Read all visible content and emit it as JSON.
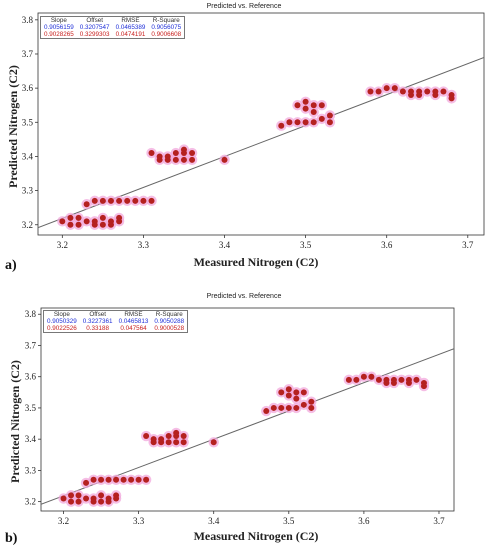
{
  "panels": [
    {
      "letter": "a)",
      "title": "Predicted vs. Reference",
      "stats": {
        "headers": [
          "Slope",
          "Offset",
          "RMSE",
          "R-Square"
        ],
        "rows": [
          [
            "0.9056159",
            "0.3207547",
            "0.0465389",
            "0.9056075"
          ],
          [
            "0.9028265",
            "0.3299303",
            "0.0474191",
            "0.9006608"
          ]
        ],
        "row_colors": [
          "#1f2fd8",
          "#c8201e"
        ]
      }
    },
    {
      "letter": "b)",
      "title": "Predicted vs. Reference",
      "stats": {
        "headers": [
          "Slope",
          "Offset",
          "RMSE",
          "R-Square"
        ],
        "rows": [
          [
            "0.9050329",
            "0.3227361",
            "0.0465813",
            "0.9050288"
          ],
          [
            "0.9022526",
            "0.33188",
            "0.047564",
            "0.9000528"
          ]
        ],
        "row_colors": [
          "#1f2fd8",
          "#c8201e"
        ]
      }
    }
  ],
  "chart_data": [
    {
      "type": "scatter",
      "title": "Predicted vs. Reference",
      "xlabel": "Measured Nitrogen (C2)",
      "ylabel": "Predicted Nitrogen (C2)",
      "xlim": [
        3.17,
        3.72
      ],
      "ylim": [
        3.17,
        3.82
      ],
      "xticks": [
        "3.2",
        "3.3",
        "3.4",
        "3.5",
        "3.6",
        "3.7"
      ],
      "yticks": [
        "3.2",
        "3.3",
        "3.4",
        "3.5",
        "3.6",
        "3.7",
        "3.8"
      ],
      "grid": false,
      "colors": {
        "points": "#b5211f",
        "halo": "#f2a8dc",
        "line": "#666666"
      },
      "series": [
        {
          "x": [
            3.2,
            3.21,
            3.22,
            3.23,
            3.21,
            3.22,
            3.24,
            3.25,
            3.26,
            3.27,
            3.24,
            3.25,
            3.26,
            3.27,
            3.23,
            3.24,
            3.25,
            3.26,
            3.27,
            3.28,
            3.29,
            3.3,
            3.31,
            3.31,
            3.32,
            3.33,
            3.34,
            3.35,
            3.36,
            3.32,
            3.33,
            3.34,
            3.35,
            3.36,
            3.35,
            3.4,
            3.47,
            3.48,
            3.49,
            3.5,
            3.51,
            3.52,
            3.49,
            3.5,
            3.51,
            3.52,
            3.5,
            3.51,
            3.53,
            3.53,
            3.58,
            3.59,
            3.6,
            3.61,
            3.62,
            3.63,
            3.64,
            3.65,
            3.66,
            3.67,
            3.68,
            3.63,
            3.66,
            3.68,
            3.64
          ],
          "y": [
            3.21,
            3.22,
            3.22,
            3.21,
            3.2,
            3.2,
            3.21,
            3.22,
            3.21,
            3.22,
            3.2,
            3.2,
            3.2,
            3.21,
            3.26,
            3.27,
            3.27,
            3.27,
            3.27,
            3.27,
            3.27,
            3.27,
            3.27,
            3.41,
            3.4,
            3.4,
            3.41,
            3.41,
            3.41,
            3.39,
            3.39,
            3.39,
            3.39,
            3.39,
            3.42,
            3.39,
            3.49,
            3.5,
            3.5,
            3.5,
            3.5,
            3.51,
            3.55,
            3.56,
            3.55,
            3.55,
            3.54,
            3.53,
            3.52,
            3.5,
            3.59,
            3.59,
            3.6,
            3.6,
            3.59,
            3.59,
            3.59,
            3.59,
            3.59,
            3.59,
            3.58,
            3.58,
            3.58,
            3.57,
            3.58
          ]
        }
      ],
      "regression_line": {
        "slope": 0.9056159,
        "offset": 0.3207547
      }
    },
    {
      "type": "scatter",
      "title": "Predicted vs. Reference",
      "xlabel": "Measured Nitrogen (C2)",
      "ylabel": "Predicted Nitrogen (C2)",
      "xlim": [
        3.17,
        3.72
      ],
      "ylim": [
        3.17,
        3.82
      ],
      "xticks": [
        "3.2",
        "3.3",
        "3.4",
        "3.5",
        "3.6",
        "3.7"
      ],
      "yticks": [
        "3.2",
        "3.3",
        "3.4",
        "3.5",
        "3.6",
        "3.7",
        "3.8"
      ],
      "grid": false,
      "colors": {
        "points": "#b5211f",
        "halo": "#f2a8dc",
        "line": "#666666"
      },
      "series": [
        {
          "x": [
            3.2,
            3.21,
            3.22,
            3.23,
            3.21,
            3.22,
            3.24,
            3.25,
            3.26,
            3.27,
            3.24,
            3.25,
            3.26,
            3.27,
            3.23,
            3.24,
            3.25,
            3.26,
            3.27,
            3.28,
            3.29,
            3.3,
            3.31,
            3.31,
            3.32,
            3.33,
            3.34,
            3.35,
            3.36,
            3.32,
            3.33,
            3.34,
            3.35,
            3.36,
            3.35,
            3.4,
            3.47,
            3.48,
            3.49,
            3.5,
            3.51,
            3.52,
            3.49,
            3.5,
            3.51,
            3.52,
            3.5,
            3.51,
            3.53,
            3.53,
            3.58,
            3.59,
            3.6,
            3.61,
            3.62,
            3.63,
            3.64,
            3.65,
            3.66,
            3.67,
            3.68,
            3.63,
            3.66,
            3.68,
            3.64
          ],
          "y": [
            3.21,
            3.22,
            3.22,
            3.21,
            3.2,
            3.2,
            3.21,
            3.22,
            3.21,
            3.22,
            3.2,
            3.2,
            3.2,
            3.21,
            3.26,
            3.27,
            3.27,
            3.27,
            3.27,
            3.27,
            3.27,
            3.27,
            3.27,
            3.41,
            3.4,
            3.4,
            3.41,
            3.41,
            3.41,
            3.39,
            3.39,
            3.39,
            3.39,
            3.39,
            3.42,
            3.39,
            3.49,
            3.5,
            3.5,
            3.5,
            3.5,
            3.51,
            3.55,
            3.56,
            3.55,
            3.55,
            3.54,
            3.53,
            3.52,
            3.5,
            3.59,
            3.59,
            3.6,
            3.6,
            3.59,
            3.59,
            3.59,
            3.59,
            3.59,
            3.59,
            3.58,
            3.58,
            3.58,
            3.57,
            3.58
          ]
        }
      ],
      "regression_line": {
        "slope": 0.9050329,
        "offset": 0.3227361
      }
    }
  ]
}
